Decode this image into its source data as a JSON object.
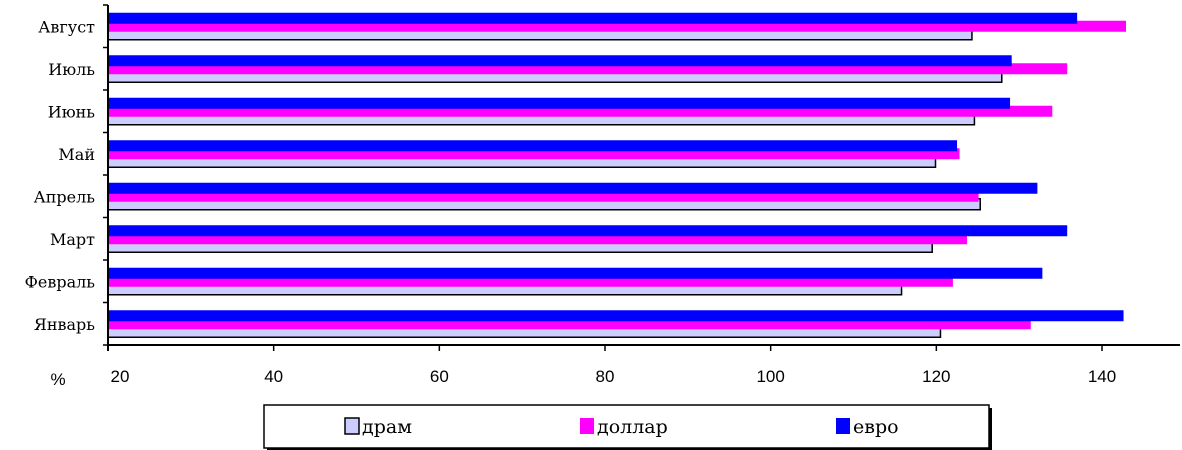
{
  "chart_data": {
    "type": "bar",
    "orientation": "horizontal",
    "categories": [
      "Январь",
      "Февраль",
      "Март",
      "Апрель",
      "Май",
      "Июнь",
      "Июль",
      "Август"
    ],
    "series": [
      {
        "name": "драм",
        "color": "#ccccff",
        "values": [
          120.5,
          115.8,
          119.5,
          125.3,
          119.9,
          124.6,
          127.9,
          124.3
        ]
      },
      {
        "name": "доллар",
        "color": "#ff00ff",
        "values": [
          131.4,
          122.0,
          123.7,
          125.1,
          122.8,
          134.0,
          135.8,
          142.9
        ]
      },
      {
        "name": "евро",
        "color": "#0000ff",
        "values": [
          142.6,
          132.8,
          135.8,
          132.2,
          122.5,
          128.9,
          129.1,
          137.0
        ]
      }
    ],
    "xlim": [
      20,
      140
    ],
    "xticks": [
      "20",
      "40",
      "60",
      "80",
      "100",
      "120",
      "140"
    ],
    "xunit": "%",
    "title": "",
    "xlabel": "",
    "ylabel": "",
    "grid": false,
    "legend_position": "bottom"
  }
}
